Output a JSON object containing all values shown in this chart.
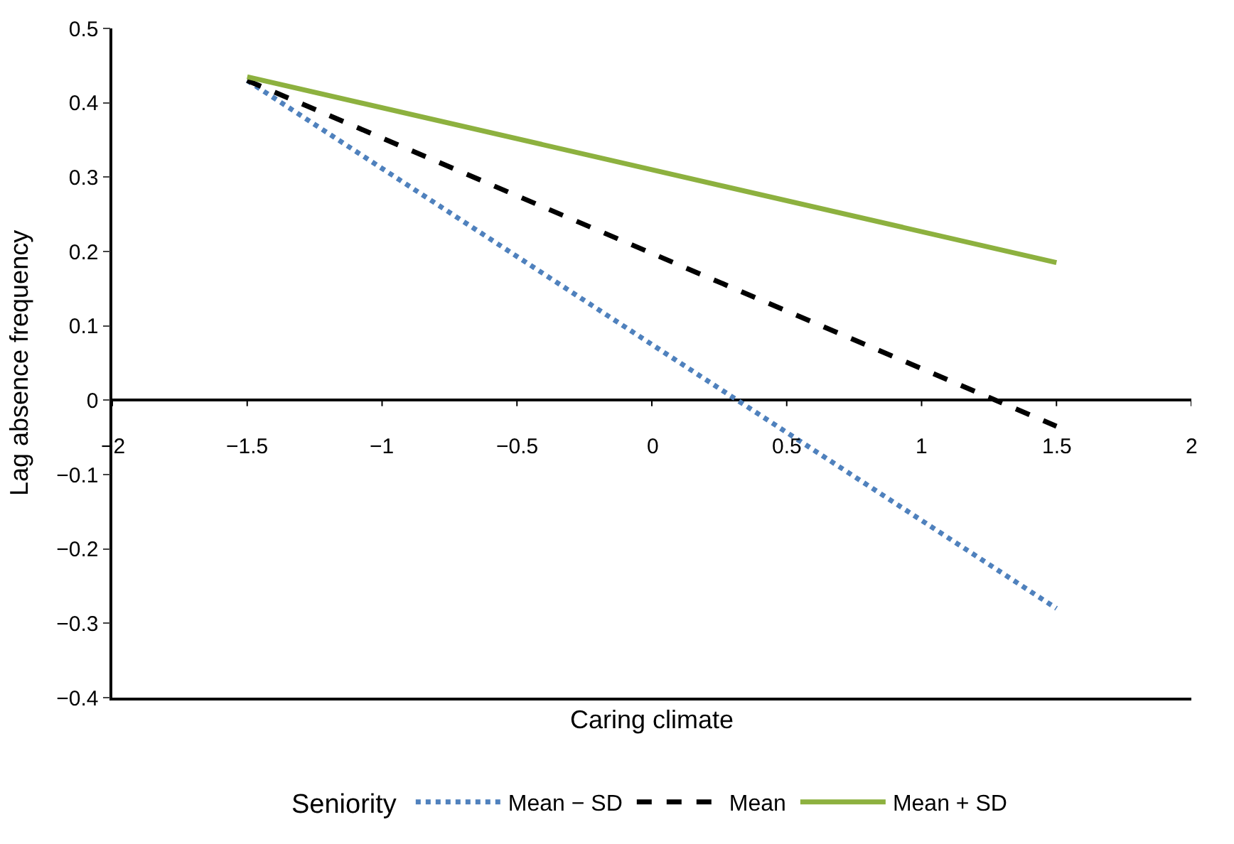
{
  "chart_data": {
    "type": "line",
    "xlabel": "Caring climate",
    "ylabel": "Lag absence frequency",
    "legend_title": "Seniority",
    "x": [
      -1.5,
      1.5
    ],
    "series": [
      {
        "name": "Mean − SD",
        "color": "#4f81bd",
        "values": [
          0.43,
          -0.28
        ],
        "line_style": "dotted"
      },
      {
        "name": "Mean",
        "color": "#000000",
        "values": [
          0.43,
          -0.035
        ],
        "line_style": "dashed"
      },
      {
        "name": "Mean + SD",
        "color": "#8db13f",
        "values": [
          0.435,
          0.185
        ],
        "line_style": "solid"
      }
    ],
    "xlim": [
      -2,
      2
    ],
    "xticks": [
      {
        "value": -2,
        "label": "−2"
      },
      {
        "value": -1.5,
        "label": "−1.5"
      },
      {
        "value": -1,
        "label": "−1"
      },
      {
        "value": -0.5,
        "label": "−0.5"
      },
      0,
      0.5,
      1,
      1.5,
      2
    ],
    "ylim": [
      -0.4,
      0.5
    ],
    "yticks": [
      {
        "value": -0.4,
        "label": "−0.4"
      },
      {
        "value": -0.3,
        "label": "−0.3"
      },
      {
        "value": -0.2,
        "label": "−0.2"
      },
      {
        "value": -0.1,
        "label": "−0.1"
      },
      0,
      0.1,
      0.2,
      0.3,
      0.4,
      0.5
    ],
    "legend": "bottom",
    "marker": "none"
  }
}
